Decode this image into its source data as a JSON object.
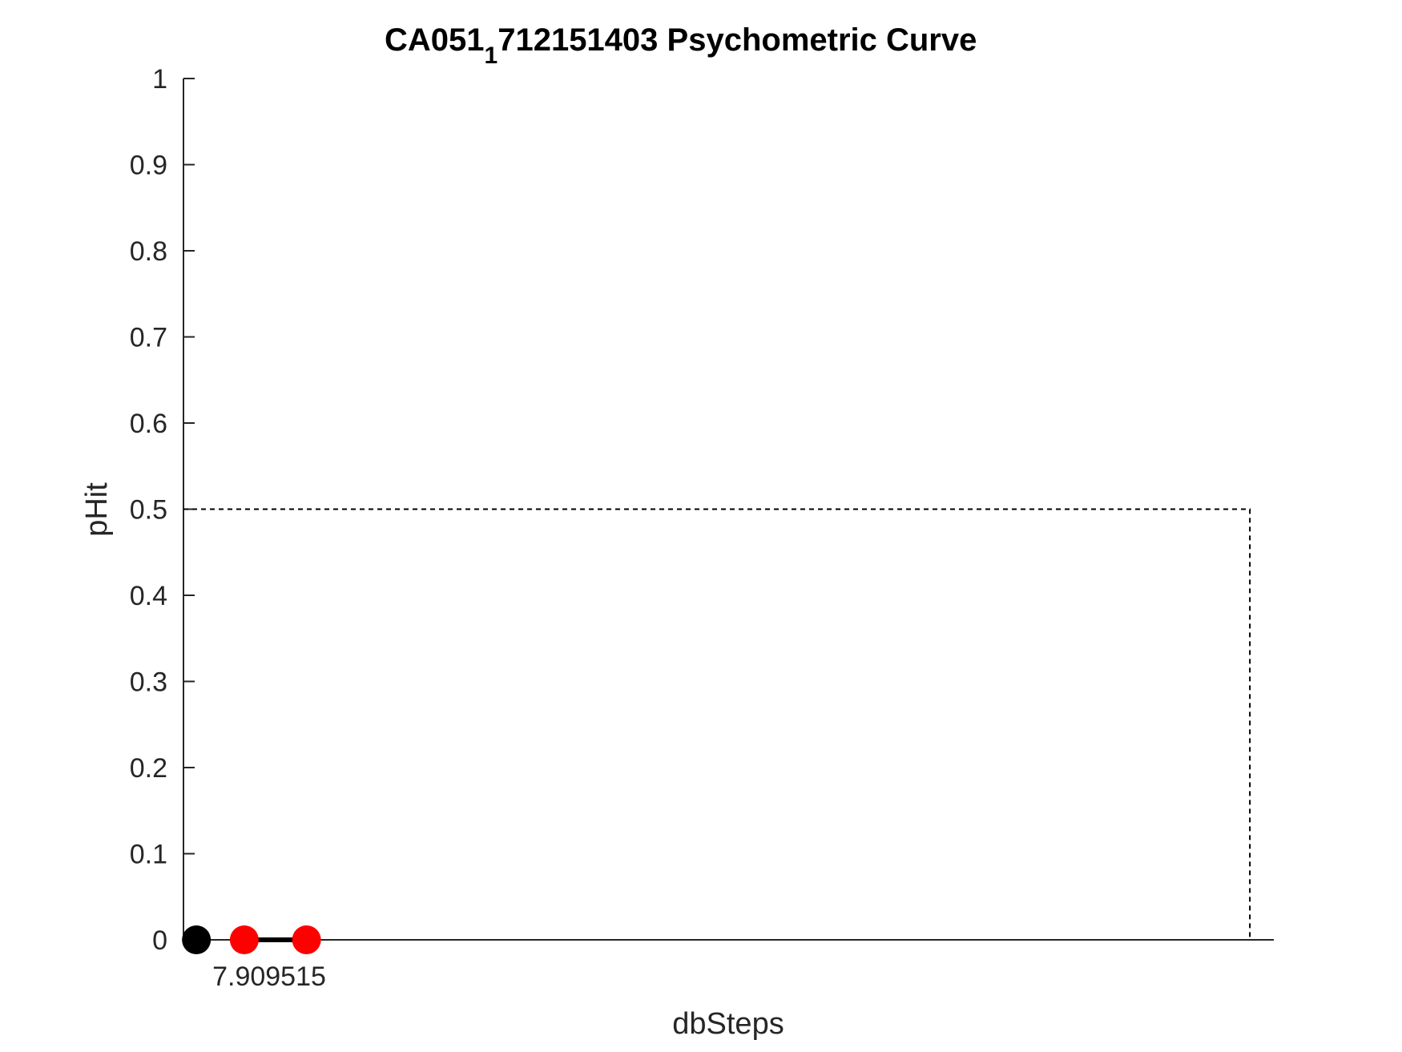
{
  "chart_data": {
    "type": "scatter",
    "title": "CA051",
    "title_subscript": "1",
    "title_rest": "712151403 Psychometric Curve",
    "xlabel": "dbSteps",
    "ylabel": "pHit",
    "ylim": [
      0,
      1
    ],
    "y_ticks": [
      "0",
      "0.1",
      "0.2",
      "0.3",
      "0.4",
      "0.5",
      "0.6",
      "0.7",
      "0.8",
      "0.9",
      "1"
    ],
    "x_tick_labels": [
      "7.909515"
    ],
    "grid": false,
    "colors": {
      "black": "#000000",
      "red": "#ff0000",
      "axis": "#262626"
    },
    "reference_line": {
      "y": 0.5,
      "style": "dashed"
    },
    "series": [
      {
        "color": "#000000",
        "points": [
          {
            "x": 0,
            "y": 0
          }
        ]
      },
      {
        "color": "#ff0000",
        "connected": true,
        "points": [
          {
            "x": 1,
            "y": 0
          },
          {
            "x": 2.3,
            "y": 0
          }
        ]
      }
    ],
    "xlim": [
      -0.27,
      22.5
    ]
  }
}
